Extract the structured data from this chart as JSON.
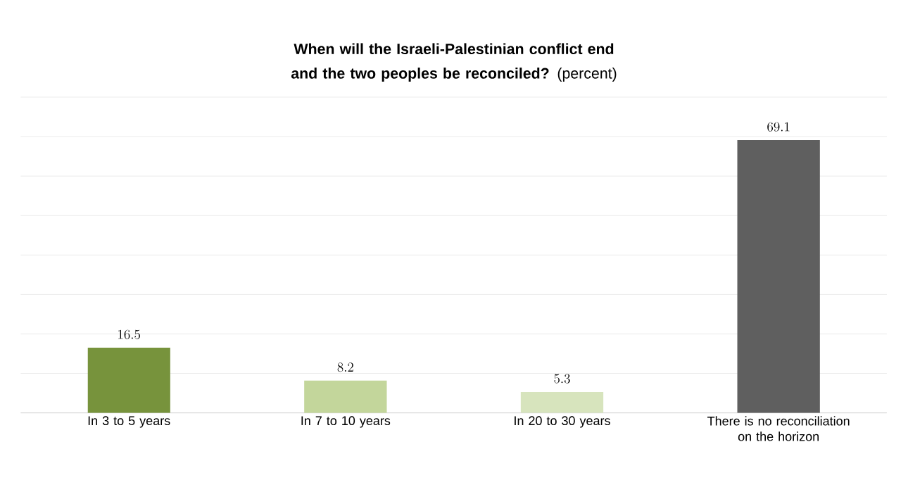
{
  "chart_data": {
    "type": "bar",
    "title": "**When will the Israeli-Palestinian conflict end and the two peoples be reconciled?** (percent)",
    "categories": [
      "In 3 to 5 years",
      "In 7 to 10 years",
      "In 20 to 30 years",
      "There is no reconciliation on the horizon"
    ],
    "values": [
      16.5,
      8.2,
      5.3,
      69.1
    ],
    "colors": [
      "#77933c",
      "#c3d69b",
      "#d7e4bd",
      "#5f5f5f"
    ],
    "ylim": [
      0,
      80
    ],
    "yticks": [
      {
        "value": 0,
        "label": null
      },
      {
        "value": 10,
        "label": null
      },
      {
        "value": 20,
        "label": null
      },
      {
        "value": 30,
        "label": null
      },
      {
        "value": 40,
        "label": null
      },
      {
        "value": 50,
        "label": null
      },
      {
        "value": 60,
        "label": null
      },
      {
        "value": 70,
        "label": null
      },
      {
        "value": 80,
        "label": null
      }
    ],
    "grid": "y",
    "data_labels": true,
    "tick_labels": "x"
  }
}
